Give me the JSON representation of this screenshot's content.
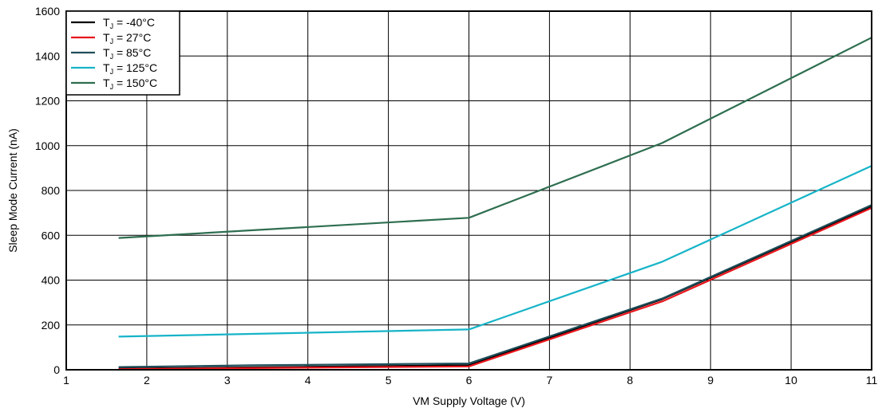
{
  "chart_data": {
    "type": "line",
    "xlabel": "VM Supply Voltage (V)",
    "ylabel": "Sleep Mode Current (nA)",
    "xlim": [
      1,
      11
    ],
    "ylim": [
      0,
      1600
    ],
    "xticks": [
      "1",
      "2",
      "3",
      "4",
      "5",
      "6",
      "7",
      "8",
      "9",
      "10",
      "11"
    ],
    "yticks": [
      "0",
      "200",
      "400",
      "600",
      "800",
      "1000",
      "1200",
      "1400",
      "1600"
    ],
    "grid": true,
    "legend_position": "top-left",
    "series": [
      {
        "name": "T_J = -40°C",
        "prefix": "T",
        "sub": "J",
        "suffix": " = -40°C",
        "color": "#000000",
        "x": [
          1.65,
          6,
          8.4,
          11
        ],
        "y": [
          5,
          20,
          315,
          730
        ]
      },
      {
        "name": "T_J = 27°C",
        "prefix": "T",
        "sub": "J",
        "suffix": " = 27°C",
        "color": "#e8141b",
        "x": [
          1.65,
          6,
          8.4,
          11
        ],
        "y": [
          3,
          15,
          305,
          722
        ]
      },
      {
        "name": "T_J = 85°C",
        "prefix": "T",
        "sub": "J",
        "suffix": " = 85°C",
        "color": "#1f4e5a",
        "x": [
          1.65,
          3.3,
          6,
          8.4,
          11
        ],
        "y": [
          12,
          20,
          28,
          318,
          735
        ]
      },
      {
        "name": "T_J = 125°C",
        "prefix": "T",
        "sub": "J",
        "suffix": " = 125°C",
        "color": "#16b4c8",
        "x": [
          1.65,
          6,
          8.4,
          11
        ],
        "y": [
          148,
          180,
          482,
          910
        ]
      },
      {
        "name": "T_J = 150°C",
        "prefix": "T",
        "sub": "J",
        "suffix": " = 150°C",
        "color": "#2e6e50",
        "x": [
          1.65,
          6,
          8.4,
          11
        ],
        "y": [
          588,
          678,
          1012,
          1482
        ]
      }
    ]
  }
}
